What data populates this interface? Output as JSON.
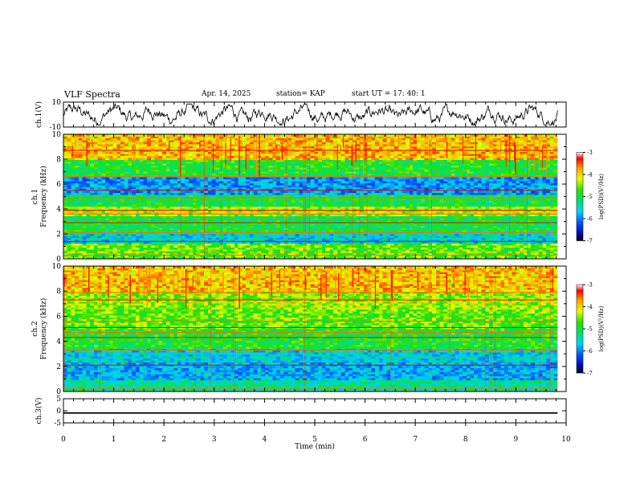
{
  "header": {
    "title": "VLF Spectra",
    "date": "Apr. 14, 2025",
    "station": "station= KAP",
    "start": "start  UT  =   17: 40: 1"
  },
  "chart_data": [
    {
      "type": "line",
      "panel": "ch1-waveform",
      "ylabel": "ch.1(V)",
      "ylim": [
        -10,
        10
      ],
      "yticks": [
        "10",
        "-10"
      ],
      "xlim": [
        0,
        10
      ],
      "x_data_extent": [
        0,
        9.83
      ]
    },
    {
      "type": "heatmap",
      "panel": "ch1-spectrogram",
      "ylabel_line1": "ch.1",
      "ylabel_line2": "Frequency (kHz)",
      "ylim": [
        0,
        10
      ],
      "yticks": [
        "0",
        "2",
        "4",
        "6",
        "8",
        "10"
      ],
      "xlim": [
        0,
        10
      ],
      "x_data_extent": [
        0,
        9.83
      ],
      "colorbar": {
        "label": "log(PSD)(V²/Hz)",
        "range": [
          -7,
          -3
        ],
        "ticks": [
          "-3",
          "-4",
          "-5",
          "-6",
          "-7"
        ]
      },
      "bands_khz": [
        {
          "from": 0.0,
          "to": 1.2,
          "level": -4.6
        },
        {
          "from": 1.2,
          "to": 2.0,
          "level": -5.6
        },
        {
          "from": 2.0,
          "to": 3.4,
          "level": -5.0
        },
        {
          "from": 3.4,
          "to": 4.2,
          "level": -4.3
        },
        {
          "from": 4.2,
          "to": 5.2,
          "level": -5.0
        },
        {
          "from": 5.2,
          "to": 6.6,
          "level": -5.9
        },
        {
          "from": 6.6,
          "to": 8.0,
          "level": -4.9
        },
        {
          "from": 8.0,
          "to": 10.0,
          "level": -3.9
        }
      ],
      "lines_khz": [
        0.3,
        1.4,
        2.1,
        2.9,
        3.6,
        3.9,
        4.9,
        5.5,
        6.6,
        8.7
      ]
    },
    {
      "type": "heatmap",
      "panel": "ch2-spectrogram",
      "ylabel_line1": "ch.2",
      "ylabel_line2": "Frequency (kHz)",
      "ylim": [
        0,
        10
      ],
      "yticks": [
        "0",
        "2",
        "4",
        "6",
        "8",
        "10"
      ],
      "xlim": [
        0,
        10
      ],
      "x_data_extent": [
        0,
        9.83
      ],
      "colorbar": {
        "label": "log(PSD)(V²/Hz)",
        "range": [
          -7,
          -3
        ],
        "ticks": [
          "-3",
          "-4",
          "-5",
          "-6",
          "-7"
        ]
      },
      "bands_khz": [
        {
          "from": 0.0,
          "to": 1.0,
          "level": -5.3
        },
        {
          "from": 1.0,
          "to": 2.4,
          "level": -5.8
        },
        {
          "from": 2.4,
          "to": 3.4,
          "level": -5.6
        },
        {
          "from": 3.4,
          "to": 5.0,
          "level": -4.9
        },
        {
          "from": 5.0,
          "to": 6.6,
          "level": -4.6
        },
        {
          "from": 6.6,
          "to": 8.0,
          "level": -4.4
        },
        {
          "from": 8.0,
          "to": 10.0,
          "level": -3.9
        }
      ],
      "lines_khz": [
        0.2,
        2.1,
        3.3,
        4.3,
        4.7,
        5.1,
        5.6,
        7.3,
        7.9
      ]
    },
    {
      "type": "line",
      "panel": "ch3-waveform",
      "ylabel": "ch.3(V)",
      "ylim": [
        -5,
        5
      ],
      "yticks": [
        "5",
        "0",
        "-5"
      ],
      "xlim": [
        0,
        10
      ],
      "x_data_extent": [
        0,
        9.83
      ],
      "signal_level": [
        -1.2,
        -0.6
      ],
      "xlabel": "Time (min)",
      "xticks": [
        "0",
        "1",
        "2",
        "3",
        "4",
        "5",
        "6",
        "7",
        "8",
        "9",
        "10"
      ]
    }
  ]
}
